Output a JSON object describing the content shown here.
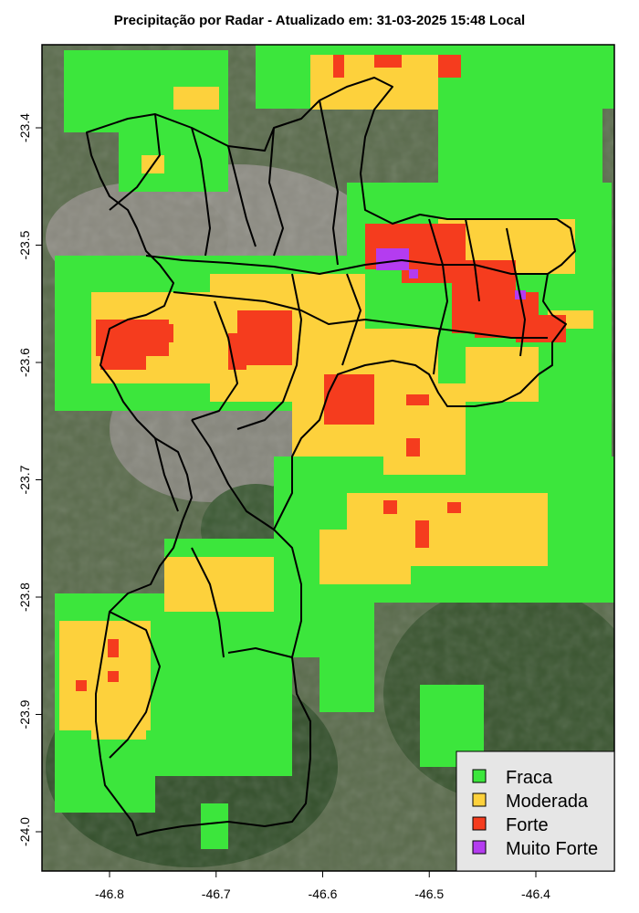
{
  "title": "Precipitação por Radar - Atualizado em: 31-03-2025 15:48 Local",
  "x_ticks": [
    "-46.8",
    "-46.7",
    "-46.6",
    "-46.5",
    "-46.4"
  ],
  "y_ticks": [
    "-23.4",
    "-23.5",
    "-23.6",
    "-23.7",
    "-23.8",
    "-23.9",
    "-24.0"
  ],
  "x_tick_values": [
    -46.8,
    -46.7,
    -46.6,
    -46.5,
    -46.4
  ],
  "y_tick_values": [
    -23.4,
    -23.5,
    -23.6,
    -23.7,
    -23.8,
    -23.9,
    -24.0
  ],
  "legend": [
    {
      "label": "Fraca",
      "color": "#3ce63c"
    },
    {
      "label": "Moderada",
      "color": "#fdd13c"
    },
    {
      "label": "Forte",
      "color": "#f53c1e"
    },
    {
      "label": "Muito Forte",
      "color": "#b43cf0"
    }
  ],
  "colors": {
    "satellite_base": "#56684a",
    "urban": "#8b8a80",
    "forest": "#2f4a2a",
    "boundary": "#000000",
    "legend_bg": "#e6e6e6"
  }
}
